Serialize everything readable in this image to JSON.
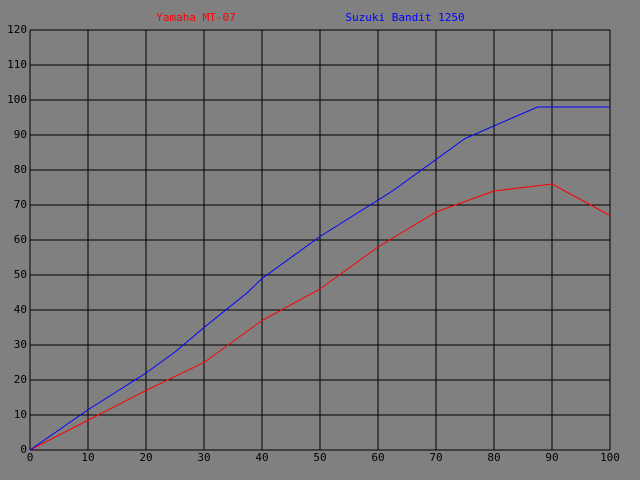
{
  "chart_data": {
    "type": "line",
    "series": [
      {
        "name": "Yamaha MT-07",
        "color": "#ff0000",
        "x": [
          0,
          10,
          20,
          30,
          40,
          50,
          60,
          70,
          80,
          90,
          100
        ],
        "values": [
          0,
          8.5,
          17,
          25,
          37,
          46,
          58,
          68,
          74,
          76,
          67
        ]
      },
      {
        "name": "Suzuki Bandit 1250",
        "color": "#0000ff",
        "x": [
          0,
          10,
          20,
          25,
          30,
          37.5,
          40,
          50,
          62.5,
          70,
          75,
          87.5,
          100
        ],
        "values": [
          0,
          11.5,
          22,
          28,
          35,
          45,
          49,
          61,
          74,
          83,
          89,
          98,
          98
        ]
      }
    ],
    "xlim": [
      0,
      100
    ],
    "xticks": [
      0,
      10,
      20,
      30,
      40,
      50,
      60,
      70,
      80,
      90,
      100
    ],
    "ylim": [
      0,
      120
    ],
    "yticks": [
      0,
      10,
      20,
      30,
      40,
      50,
      60,
      70,
      80,
      90,
      100,
      110,
      120
    ],
    "grid": true,
    "grid_color": "#000000",
    "background": "#808080"
  }
}
